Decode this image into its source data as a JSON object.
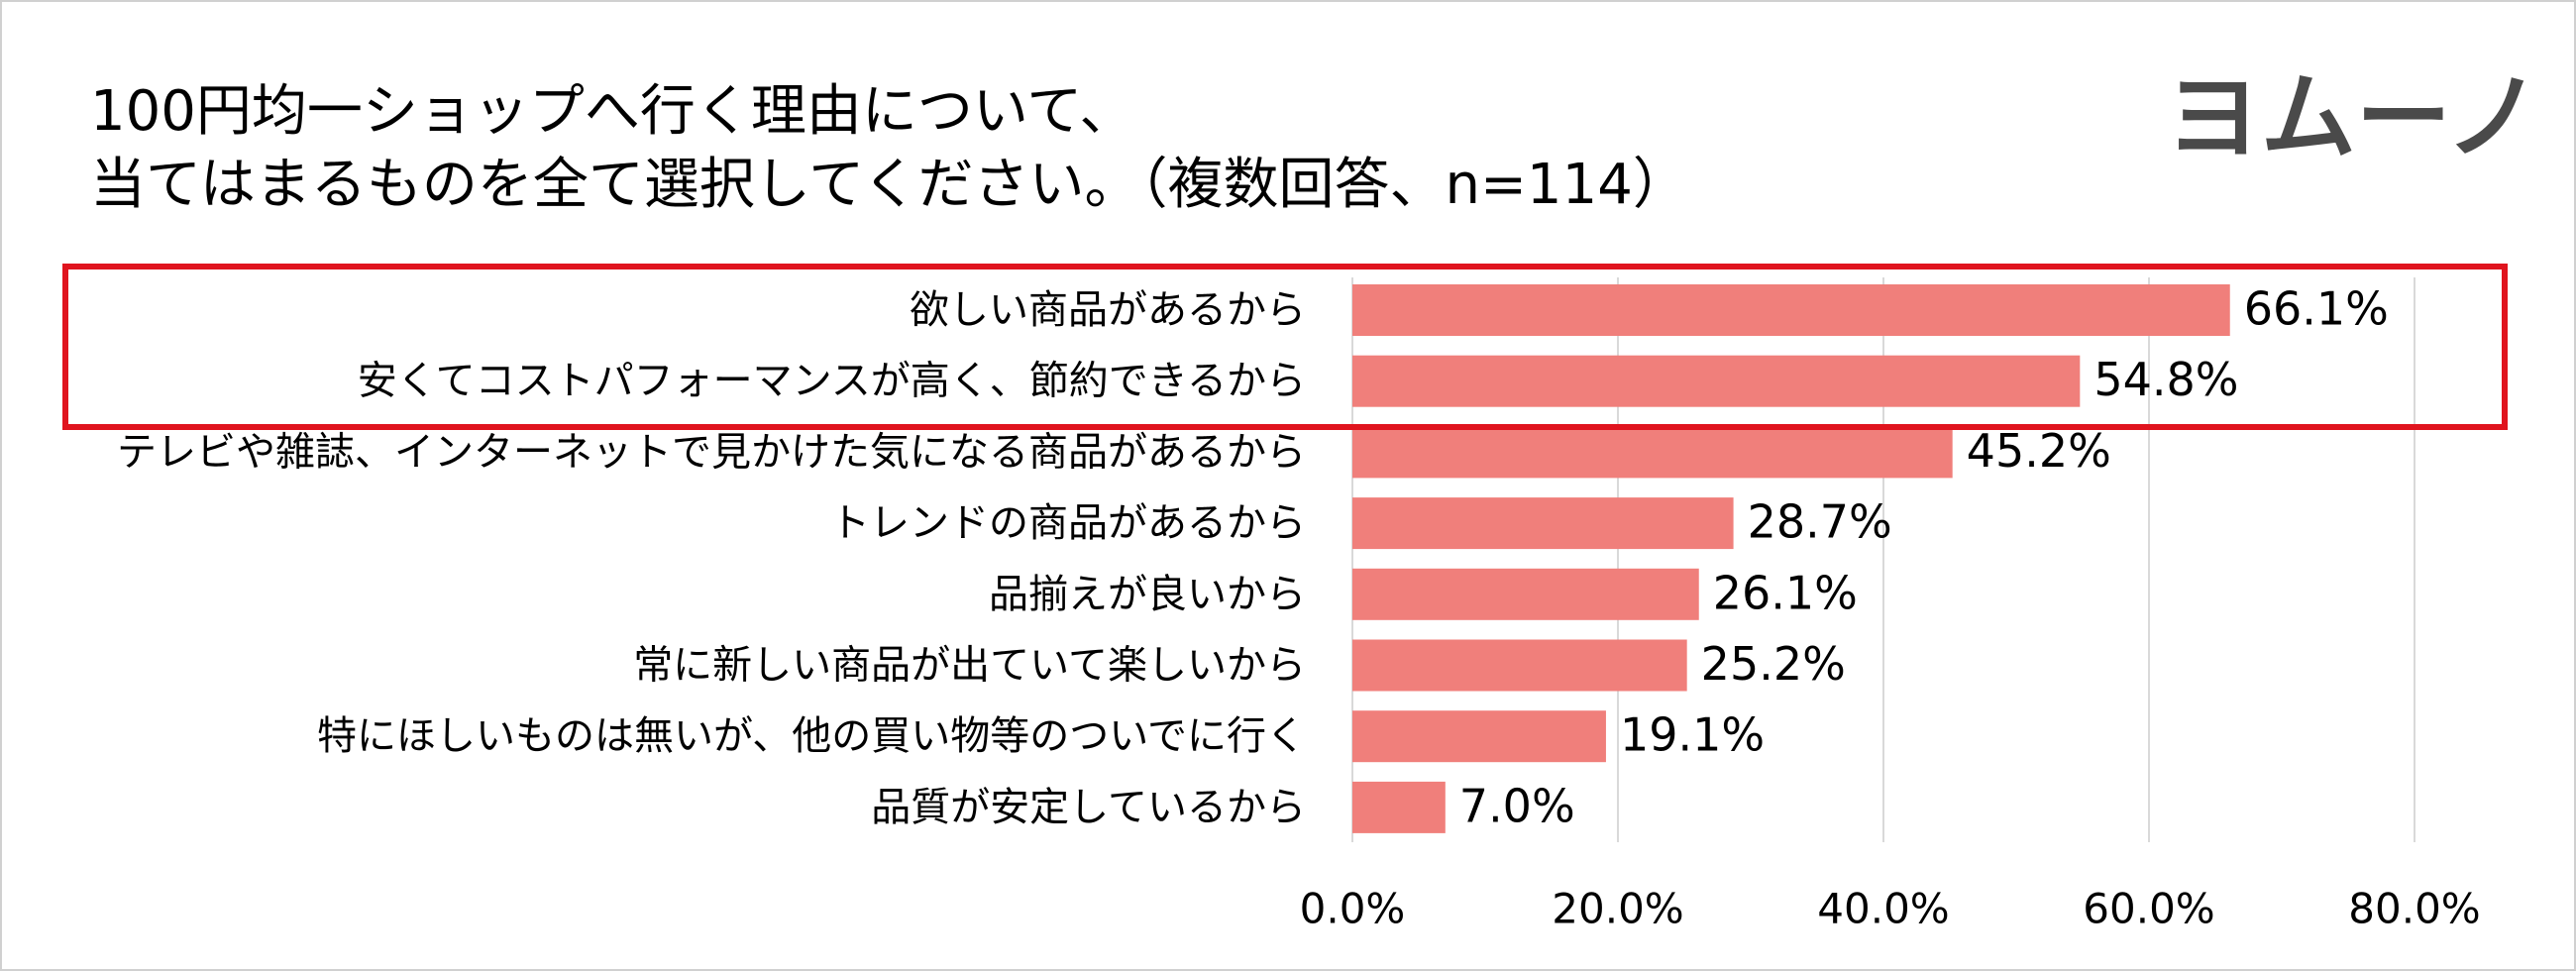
{
  "chart_data": {
    "type": "bar",
    "orientation": "horizontal",
    "title": [
      "100円均一ショップへ行く理由について、",
      "当てはまるものを全て選択してください。（複数回答、n=114）"
    ],
    "logo": "ヨムーノ",
    "categories": [
      "欲しい商品があるから",
      "安くてコストパフォーマンスが高く、節約できるから",
      "テレビや雑誌、インターネットで見かけた気になる商品があるから",
      "トレンドの商品があるから",
      "品揃えが良いから",
      "常に新しい商品が出ていて楽しいから",
      "特にほしいものは無いが、他の買い物等のついでに行く",
      "品質が安定しているから"
    ],
    "values": [
      66.1,
      54.8,
      45.2,
      28.7,
      26.1,
      25.2,
      19.1,
      7.0
    ],
    "value_labels": [
      "66.1%",
      "54.8%",
      "45.2%",
      "28.7%",
      "26.1%",
      "25.2%",
      "19.1%",
      "7.0%"
    ],
    "color": "#f07f7b",
    "xlim": [
      0,
      80
    ],
    "xticks": [
      {
        "value": 0,
        "label": "0.0%"
      },
      {
        "value": 20,
        "label": "20.0%"
      },
      {
        "value": 40,
        "label": "40.0%"
      },
      {
        "value": 60,
        "label": "60.0%"
      },
      {
        "value": 80,
        "label": "80.0%"
      }
    ],
    "grid": true
  }
}
